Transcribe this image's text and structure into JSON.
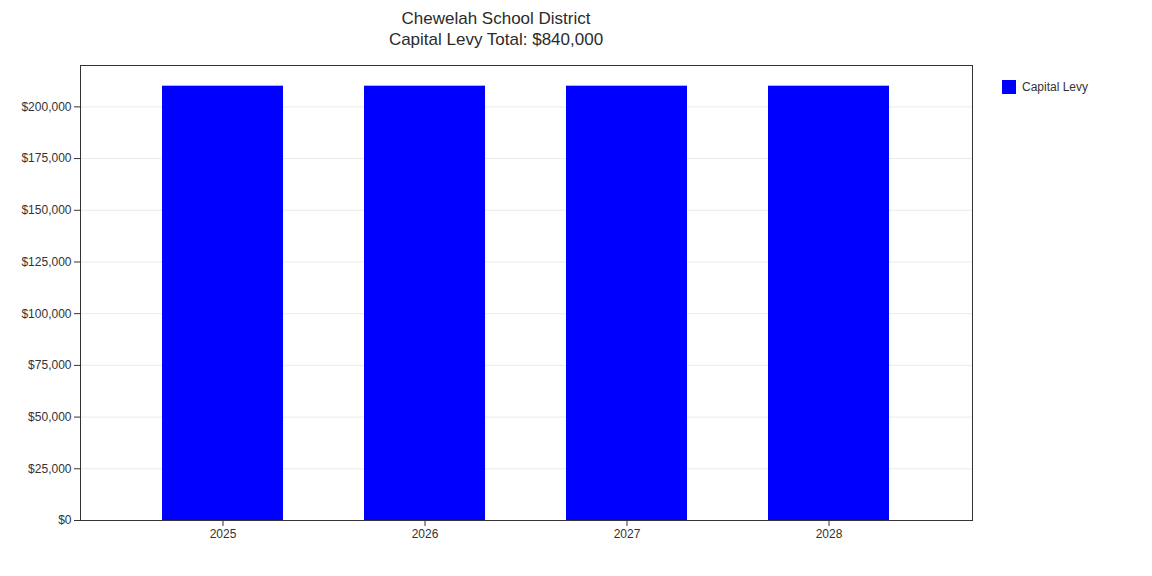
{
  "chart_data": {
    "type": "bar",
    "title": "Chewelah School District",
    "subtitle": "Capital Levy Total: $840,000",
    "categories": [
      "2025",
      "2026",
      "2027",
      "2028"
    ],
    "series": [
      {
        "name": "Capital Levy",
        "color": "#0000FF",
        "values": [
          210000,
          210000,
          210000,
          210000
        ]
      }
    ],
    "ylim": [
      0,
      220000
    ],
    "yticks": [
      {
        "value": 0,
        "label": "$0"
      },
      {
        "value": 25000,
        "label": "$25,000"
      },
      {
        "value": 50000,
        "label": "$50,000"
      },
      {
        "value": 75000,
        "label": "$75,000"
      },
      {
        "value": 100000,
        "label": "$100,000"
      },
      {
        "value": 125000,
        "label": "$125,000"
      },
      {
        "value": 150000,
        "label": "$150,000"
      },
      {
        "value": 175000,
        "label": "$175,000"
      },
      {
        "value": 200000,
        "label": "$200,000"
      }
    ],
    "grid": true,
    "legend": "upper right"
  }
}
